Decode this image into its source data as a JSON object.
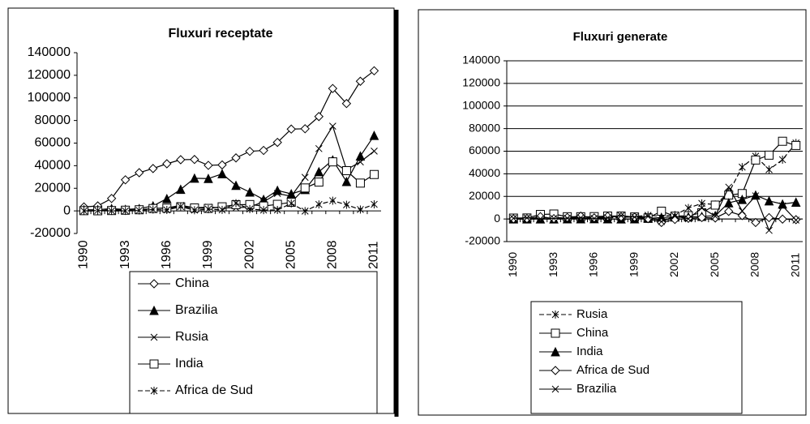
{
  "chart_data": [
    {
      "type": "line",
      "title": "Fluxuri receptate",
      "categories": [
        "1990",
        null,
        null,
        "1993",
        null,
        null,
        "1996",
        null,
        null,
        "1999",
        null,
        null,
        "2002",
        null,
        null,
        "2005",
        null,
        null,
        "2008",
        null,
        null,
        "2011"
      ],
      "ylim": [
        -20000,
        140000
      ],
      "yticks": [
        -20000,
        0,
        20000,
        40000,
        60000,
        80000,
        100000,
        120000,
        140000
      ],
      "grid": false,
      "series": [
        {
          "name": "China",
          "color": "#000000",
          "marker": "diamond",
          "dashed": false,
          "values": [
            3500,
            4400,
            11000,
            27500,
            33800,
            37500,
            41700,
            45300,
            45500,
            40300,
            40700,
            46900,
            52700,
            53500,
            60600,
            72400,
            72700,
            83500,
            108300,
            95000,
            114700,
            124000
          ]
        },
        {
          "name": "Brazilia",
          "color": "#000000",
          "marker": "triangle",
          "dashed": false,
          "values": [
            1000,
            1100,
            2000,
            1300,
            2000,
            4400,
            10800,
            19000,
            28900,
            28600,
            32800,
            22500,
            16600,
            10100,
            18100,
            15100,
            18800,
            34600,
            45000,
            25900,
            48500,
            66700
          ]
        },
        {
          "name": "Rusia",
          "color": "#000000",
          "marker": "x",
          "dashed": false,
          "values": [
            0,
            0,
            1200,
            1200,
            700,
            2100,
            2600,
            4900,
            2800,
            3300,
            2700,
            2700,
            3500,
            8000,
            15400,
            12900,
            29700,
            55100,
            75000,
            36500,
            43300,
            52900
          ]
        },
        {
          "name": "India",
          "color": "#000000",
          "marker": "square",
          "dashed": false,
          "values": [
            200,
            100,
            300,
            600,
            1000,
            2100,
            2400,
            3600,
            2600,
            2200,
            3600,
            5500,
            5600,
            4300,
            5800,
            7600,
            20300,
            25500,
            43400,
            35600,
            24600,
            32200
          ]
        },
        {
          "name": "Africa de Sud",
          "color": "#000000",
          "marker": "asterisk",
          "dashed": true,
          "values": [
            0,
            300,
            0,
            0,
            400,
            1200,
            800,
            3800,
            600,
            1500,
            900,
            6800,
            1600,
            700,
            800,
            6600,
            -200,
            5700,
            9000,
            5400,
            1200,
            5800
          ]
        }
      ]
    },
    {
      "type": "line",
      "title": "Fluxuri generate",
      "categories": [
        "1990",
        null,
        null,
        "1993",
        null,
        null,
        "1996",
        null,
        null,
        "1999",
        null,
        null,
        "2002",
        null,
        null,
        "2005",
        null,
        null,
        "2008",
        null,
        null,
        "2011"
      ],
      "ylim": [
        -20000,
        140000
      ],
      "yticks": [
        -20000,
        0,
        20000,
        40000,
        60000,
        80000,
        100000,
        120000,
        140000
      ],
      "grid": true,
      "series": [
        {
          "name": "Rusia",
          "color": "#000000",
          "marker": "asterisk",
          "dashed": true,
          "values": [
            0,
            0,
            1200,
            1200,
            1000,
            1000,
            900,
            1200,
            1300,
            2200,
            3200,
            2500,
            3500,
            9700,
            13800,
            12800,
            23200,
            45900,
            55600,
            43700,
            52500,
            67300
          ]
        },
        {
          "name": "China",
          "color": "#000000",
          "marker": "square",
          "dashed": false,
          "values": [
            800,
            900,
            4000,
            4400,
            2000,
            2000,
            2100,
            2600,
            2600,
            1800,
            900,
            6900,
            2500,
            2900,
            5500,
            12300,
            21200,
            22500,
            52200,
            56500,
            68800,
            65100
          ]
        },
        {
          "name": "India",
          "color": "#000000",
          "marker": "triangle",
          "dashed": false,
          "values": [
            0,
            0,
            0,
            0,
            100,
            100,
            200,
            100,
            0,
            100,
            500,
            1400,
            1700,
            1900,
            2200,
            3000,
            14300,
            17200,
            21100,
            16000,
            13200,
            14800
          ]
        },
        {
          "name": "Africa de Sud",
          "color": "#000000",
          "marker": "diamond",
          "dashed": false,
          "values": [
            100,
            300,
            2100,
            300,
            1300,
            2500,
            1000,
            2300,
            1800,
            1600,
            300,
            -3100,
            -400,
            600,
            1300,
            900,
            6700,
            3000,
            -3100,
            1200,
            -100,
            -600
          ]
        },
        {
          "name": "Brazilia",
          "color": "#000000",
          "marker": "x",
          "dashed": false,
          "values": [
            600,
            1000,
            100,
            500,
            700,
            1100,
            500,
            1100,
            2900,
            1700,
            2300,
            -2300,
            2500,
            200,
            9800,
            2500,
            28200,
            7100,
            20500,
            -10100,
            11600,
            -1000
          ]
        }
      ]
    }
  ]
}
